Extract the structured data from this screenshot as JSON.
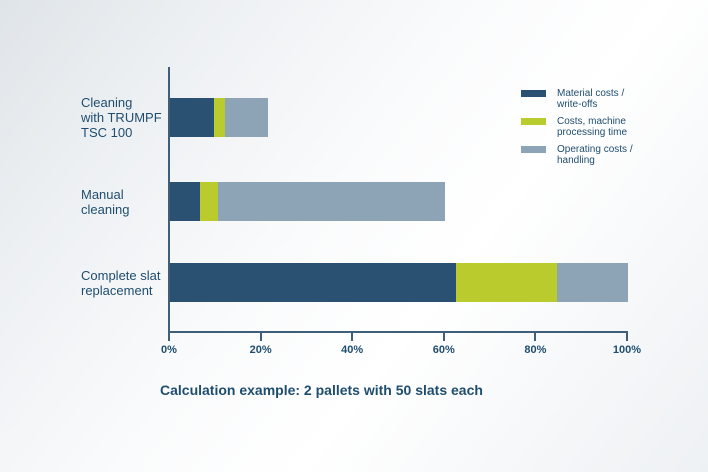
{
  "chart_data": {
    "type": "bar",
    "orientation": "horizontal",
    "stacked": true,
    "unit": "%",
    "title": "",
    "caption": "Calculation example: 2 pallets with 50 slats each",
    "categories": [
      "Cleaning with TRUMPF TSC 100",
      "Manual cleaning",
      "Complete slat replacement"
    ],
    "category_label_lines": [
      [
        "Cleaning",
        "with TRUMPF",
        "TSC 100"
      ],
      [
        "Manual",
        "cleaning"
      ],
      [
        "Complete slat",
        "replacement"
      ]
    ],
    "series": [
      {
        "name": "Material costs / write-offs",
        "label_lines": [
          "Material costs /",
          "write-offs"
        ],
        "color": "#2a5172",
        "values": [
          9.5,
          6.5,
          62.5
        ]
      },
      {
        "name": "Costs, machine processing time",
        "label_lines": [
          "Costs, machine",
          "processing time"
        ],
        "color": "#b9cb2d",
        "values": [
          2.5,
          4,
          22
        ]
      },
      {
        "name": "Operating costs / handling",
        "label_lines": [
          "Operating costs /",
          "handling"
        ],
        "color": "#8da3b6",
        "values": [
          9.5,
          49.5,
          15.5
        ]
      }
    ],
    "totals_percent": [
      21.5,
      60,
      100
    ],
    "x_ticks": [
      "0%",
      "20%",
      "40%",
      "60%",
      "80%",
      "100%"
    ],
    "xlim": [
      0,
      100
    ],
    "grid": false,
    "legend_position": "top-right"
  },
  "colors": {
    "text": "#1f4d6e",
    "axis": "#3f5e79",
    "background_shade": "#dfe4e8",
    "background_light": "#ffffff"
  }
}
